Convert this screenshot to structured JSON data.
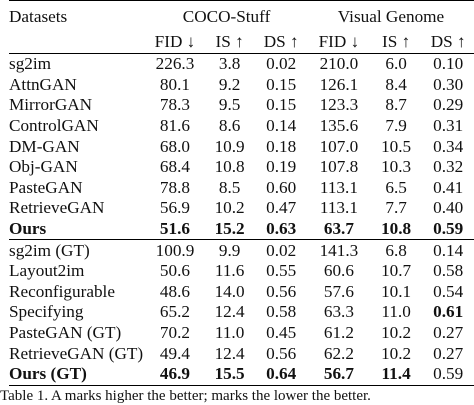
{
  "table": {
    "header": {
      "datasets_label": "Datasets",
      "group_a": "COCO-Stuff",
      "group_b": "Visual Genome",
      "metrics": [
        "FID ↓",
        "IS ↑",
        "DS ↑",
        "FID ↓",
        "IS ↑",
        "DS ↑"
      ]
    },
    "section1": [
      {
        "name": "sg2im",
        "values": [
          "226.3",
          "3.8",
          "0.02",
          "210.0",
          "6.0",
          "0.10"
        ],
        "bold": []
      },
      {
        "name": "AttnGAN",
        "values": [
          "80.1",
          "9.2",
          "0.15",
          "126.1",
          "8.4",
          "0.30"
        ],
        "bold": []
      },
      {
        "name": "MirrorGAN",
        "values": [
          "78.3",
          "9.5",
          "0.15",
          "123.3",
          "8.7",
          "0.29"
        ],
        "bold": []
      },
      {
        "name": "ControlGAN",
        "values": [
          "81.6",
          "8.6",
          "0.14",
          "135.6",
          "7.9",
          "0.31"
        ],
        "bold": []
      },
      {
        "name": "DM-GAN",
        "values": [
          "68.0",
          "10.9",
          "0.18",
          "107.0",
          "10.5",
          "0.34"
        ],
        "bold": []
      },
      {
        "name": "Obj-GAN",
        "values": [
          "68.4",
          "10.8",
          "0.19",
          "107.8",
          "10.3",
          "0.32"
        ],
        "bold": []
      },
      {
        "name": "PasteGAN",
        "values": [
          "78.8",
          "8.5",
          "0.60",
          "113.1",
          "6.5",
          "0.41"
        ],
        "bold": []
      },
      {
        "name": "RetrieveGAN",
        "values": [
          "56.9",
          "10.2",
          "0.47",
          "113.1",
          "7.7",
          "0.40"
        ],
        "bold": []
      },
      {
        "name": "Ours",
        "values": [
          "51.6",
          "15.2",
          "0.63",
          "63.7",
          "10.8",
          "0.59"
        ],
        "bold": [
          0,
          1,
          2,
          3,
          4,
          5
        ]
      }
    ],
    "section2": [
      {
        "name": "sg2im (GT)",
        "values": [
          "100.9",
          "9.9",
          "0.02",
          "141.3",
          "6.8",
          "0.14"
        ],
        "bold": []
      },
      {
        "name": "Layout2im",
        "values": [
          "50.6",
          "11.6",
          "0.55",
          "60.6",
          "10.7",
          "0.58"
        ],
        "bold": []
      },
      {
        "name": "Reconfigurable",
        "values": [
          "48.6",
          "14.0",
          "0.56",
          "57.6",
          "10.1",
          "0.54"
        ],
        "bold": []
      },
      {
        "name": "Specifying",
        "values": [
          "65.2",
          "12.4",
          "0.58",
          "63.3",
          "11.0",
          "0.61"
        ],
        "bold": [
          5
        ]
      },
      {
        "name": "PasteGAN (GT)",
        "values": [
          "70.2",
          "11.0",
          "0.45",
          "61.2",
          "10.2",
          "0.27"
        ],
        "bold": []
      },
      {
        "name": "RetrieveGAN (GT)",
        "values": [
          "49.4",
          "12.4",
          "0.56",
          "62.2",
          "10.2",
          "0.27"
        ],
        "bold": []
      },
      {
        "name": "Ours (GT)",
        "values": [
          "46.9",
          "15.5",
          "0.64",
          "56.7",
          "11.4",
          "0.59"
        ],
        "bold": [
          0,
          1,
          2,
          3,
          4
        ]
      }
    ]
  },
  "caption": "Table 1. A  marks higher the better;  marks the lower the better."
}
